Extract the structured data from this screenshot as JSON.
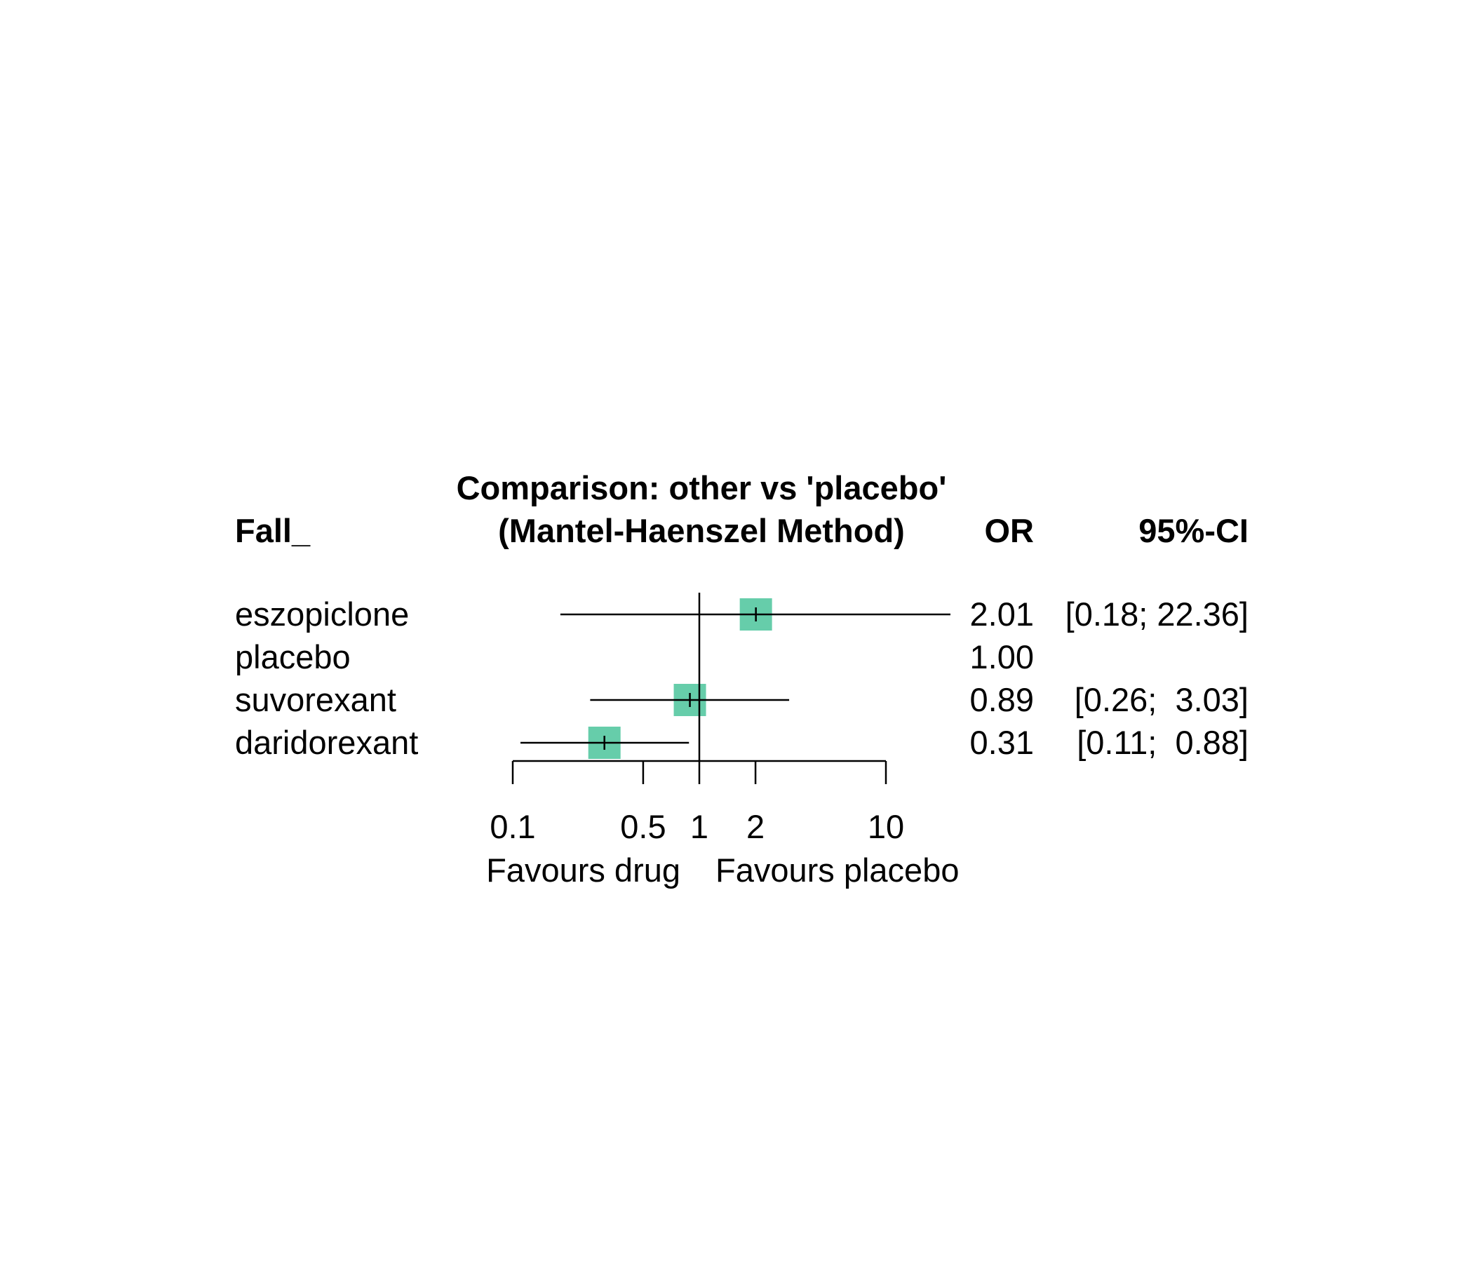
{
  "colors": {
    "background": "#ffffff",
    "text": "#000000",
    "marker_fill": "#66cdaa",
    "line": "#000000"
  },
  "header": {
    "title_line1": "Comparison: other vs 'placebo'",
    "title_line2": "(Mantel-Haenszel Method)",
    "col_treatment": "Fall_",
    "col_estimate": "OR",
    "col_ci": "95%-CI"
  },
  "chart_data": {
    "type": "forest",
    "title": "Comparison: other vs 'placebo'",
    "subtitle": "(Mantel-Haenszel Method)",
    "effect_measure": "OR",
    "x_scale": "log",
    "xlim": [
      0.1,
      10
    ],
    "reference_value": 1,
    "x_ticks": [
      0.1,
      0.5,
      1,
      2,
      10
    ],
    "x_tick_labels": [
      "0.1",
      "0.5",
      "1",
      "2",
      "10"
    ],
    "label_left": "Favours drug",
    "label_right": "Favours placebo",
    "rows": [
      {
        "label": "eszopiclone",
        "estimate": 2.01,
        "lower": 0.18,
        "upper": 22.36,
        "estimate_text": "2.01",
        "ci_text": "[0.18; 22.36]"
      },
      {
        "label": "placebo",
        "estimate": 1.0,
        "lower": null,
        "upper": null,
        "estimate_text": "1.00",
        "ci_text": ""
      },
      {
        "label": "suvorexant",
        "estimate": 0.89,
        "lower": 0.26,
        "upper": 3.03,
        "estimate_text": "0.89",
        "ci_text": "[0.26;  3.03]"
      },
      {
        "label": "daridorexant",
        "estimate": 0.31,
        "lower": 0.11,
        "upper": 0.88,
        "estimate_text": "0.31",
        "ci_text": "[0.11;  0.88]"
      }
    ]
  }
}
